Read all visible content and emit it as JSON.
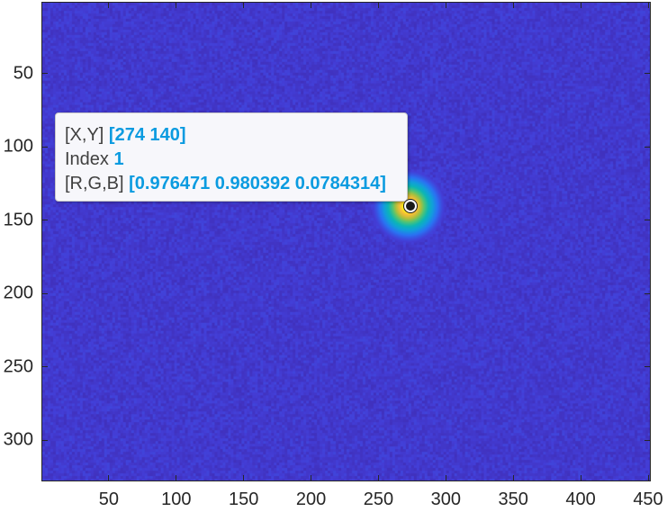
{
  "chart_data": {
    "type": "heatmap",
    "title": "",
    "xlabel": "",
    "ylabel": "",
    "xlim": [
      0,
      452
    ],
    "ylim": [
      328,
      1
    ],
    "y_axis_reversed": true,
    "colormap": "parula",
    "background_level": 0.08,
    "x_ticks": [
      50,
      100,
      150,
      200,
      250,
      300,
      350,
      400,
      450
    ],
    "y_ticks": [
      50,
      100,
      150,
      200,
      250,
      300
    ],
    "hotspot": {
      "x": 272,
      "y": 140,
      "radius": 14,
      "peak_level": 1.0
    },
    "datatip": {
      "xy_label": "[X,Y]",
      "xy_value": "[274 140]",
      "index_label": "Index",
      "index_value": "1",
      "rgb_label": "[R,G,B]",
      "rgb_value": "[0.976471 0.980392 0.0784314]",
      "x": 274,
      "y": 140
    }
  }
}
